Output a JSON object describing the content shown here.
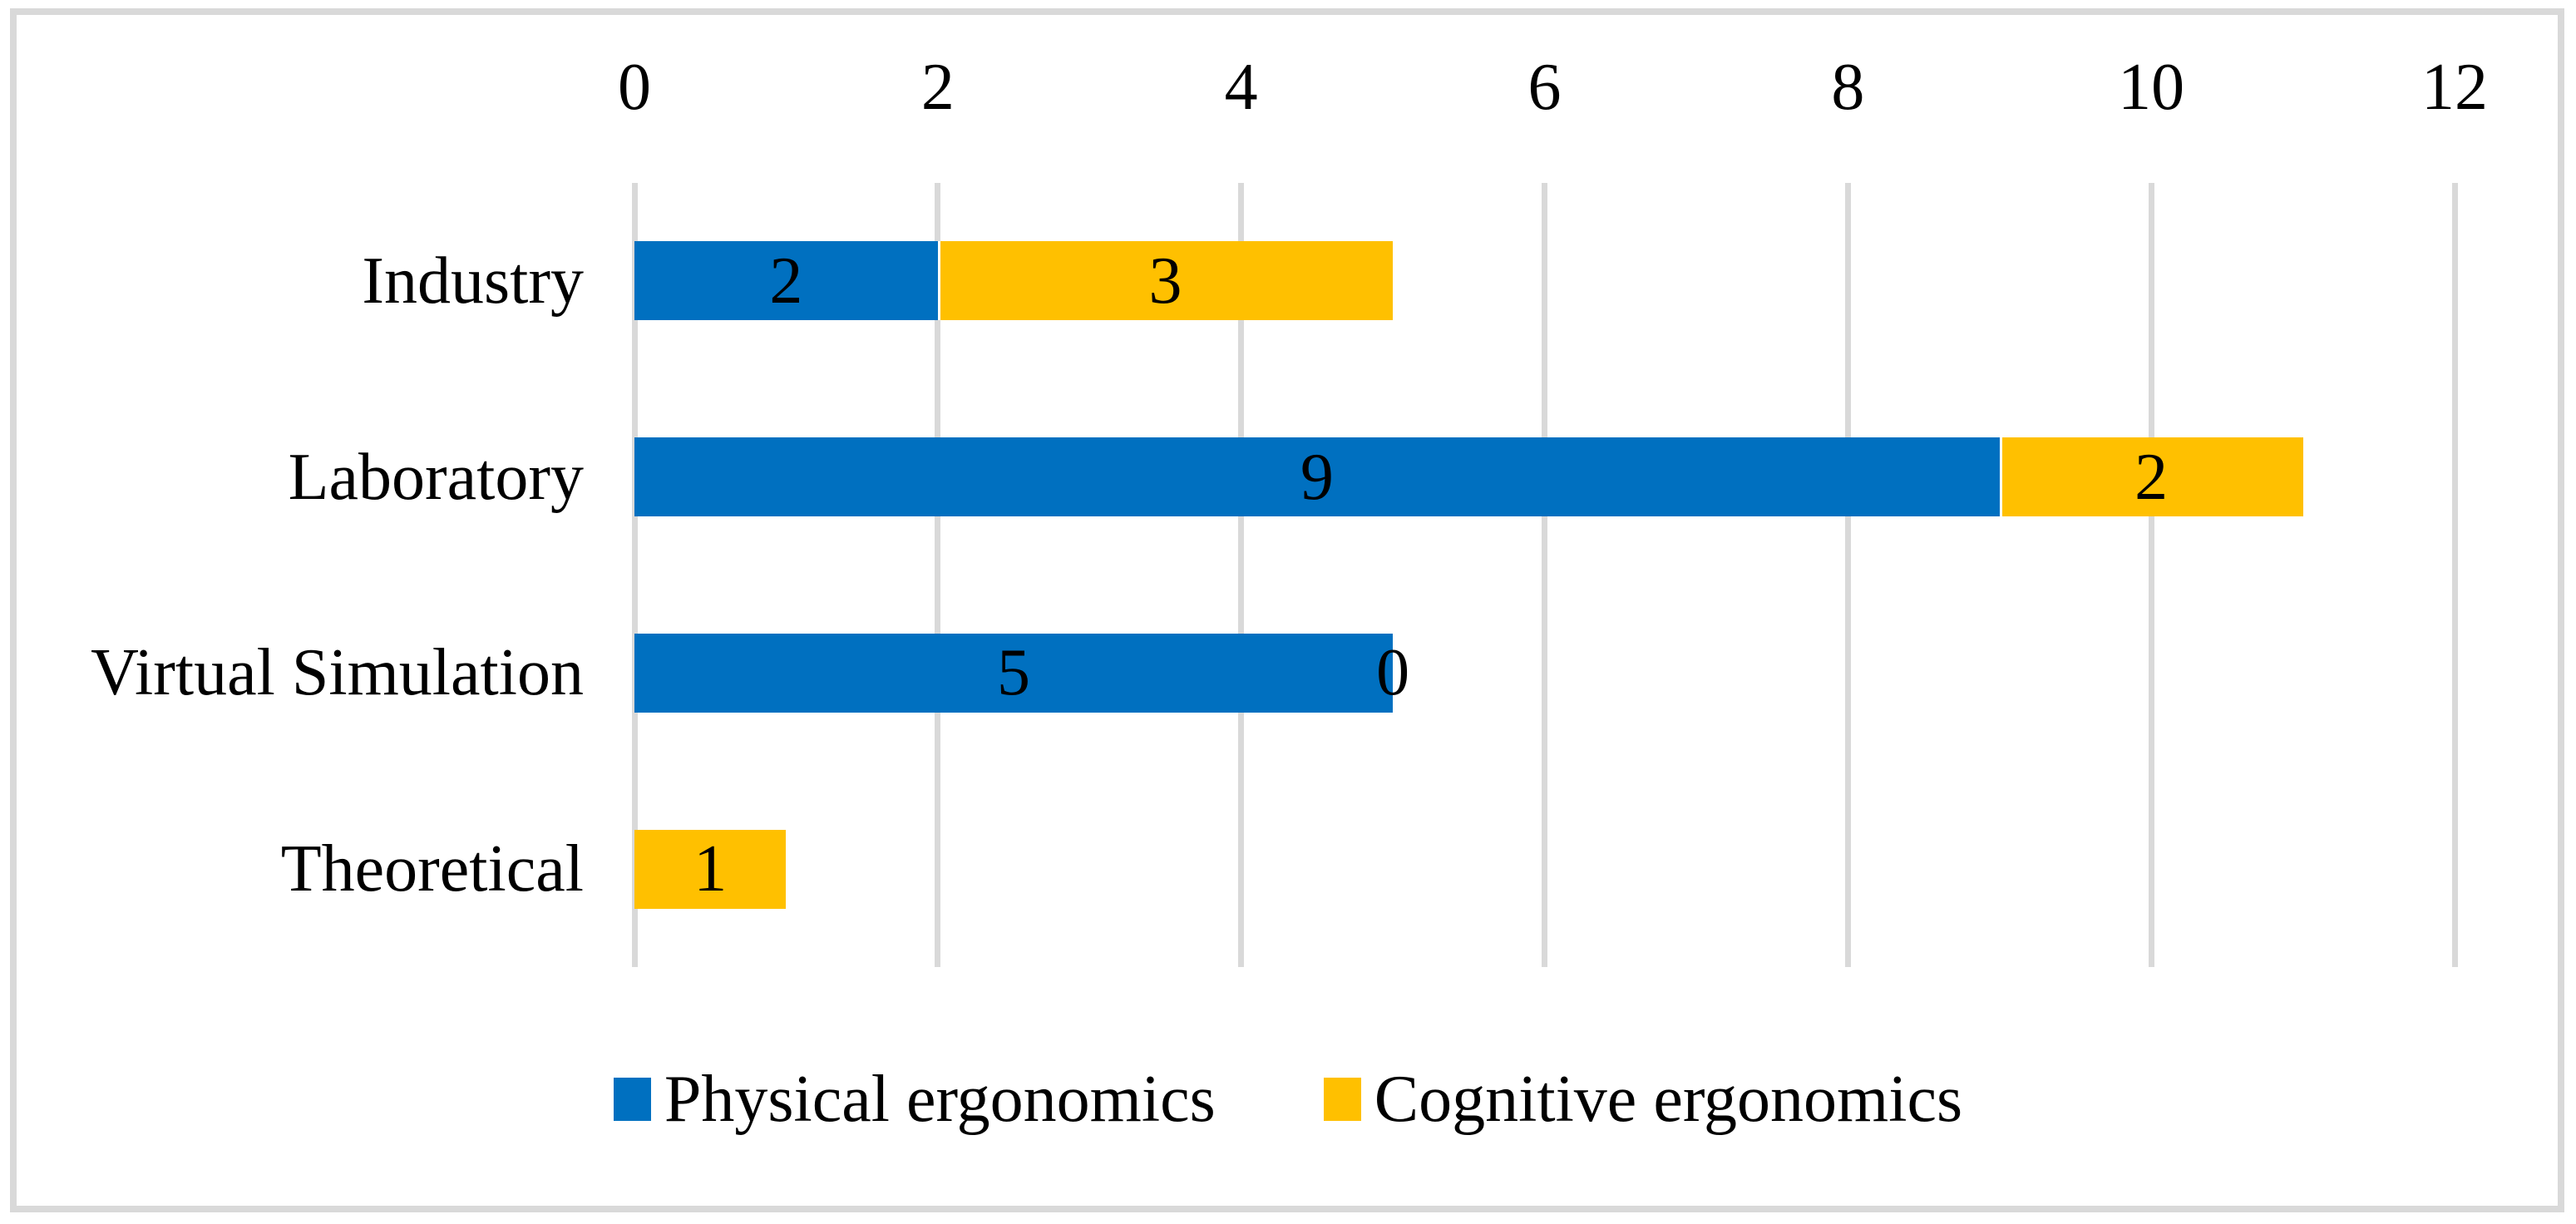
{
  "chart_data": {
    "type": "bar",
    "orientation": "horizontal",
    "stacked": true,
    "title": "",
    "xlabel": "",
    "ylabel": "",
    "categories": [
      "Industry",
      "Laboratory",
      "Virtual Simulation",
      "Theoretical"
    ],
    "series": [
      {
        "name": "Physical ergonomics",
        "color": "#0070C0",
        "values": [
          2,
          9,
          5,
          null
        ]
      },
      {
        "name": "Cognitive ergonomics",
        "color": "#FFC000",
        "values": [
          3,
          2,
          0,
          1
        ]
      }
    ],
    "data_labels": {
      "Industry": {
        "Physical ergonomics": "2",
        "Cognitive ergonomics": "3"
      },
      "Laboratory": {
        "Physical ergonomics": "9",
        "Cognitive ergonomics": "2"
      },
      "Virtual Simulation": {
        "Physical ergonomics": "5",
        "Cognitive ergonomics": "0"
      },
      "Theoretical": {
        "Physical ergonomics": "",
        "Cognitive ergonomics": "1"
      }
    },
    "xlim": [
      0,
      12
    ],
    "x_ticks": [
      "0",
      "2",
      "4",
      "6",
      "8",
      "10",
      "12"
    ],
    "grid": "vertical",
    "gridline_color": "#D9D9D9",
    "legend_position": "bottom",
    "legend": [
      "Physical ergonomics",
      "Cognitive ergonomics"
    ]
  },
  "colors": {
    "physical": "#0070C0",
    "cognitive": "#FFC000",
    "gridline": "#D9D9D9",
    "frame_border": "#D9D9D9",
    "text": "#000000",
    "background": "#FFFFFF"
  }
}
